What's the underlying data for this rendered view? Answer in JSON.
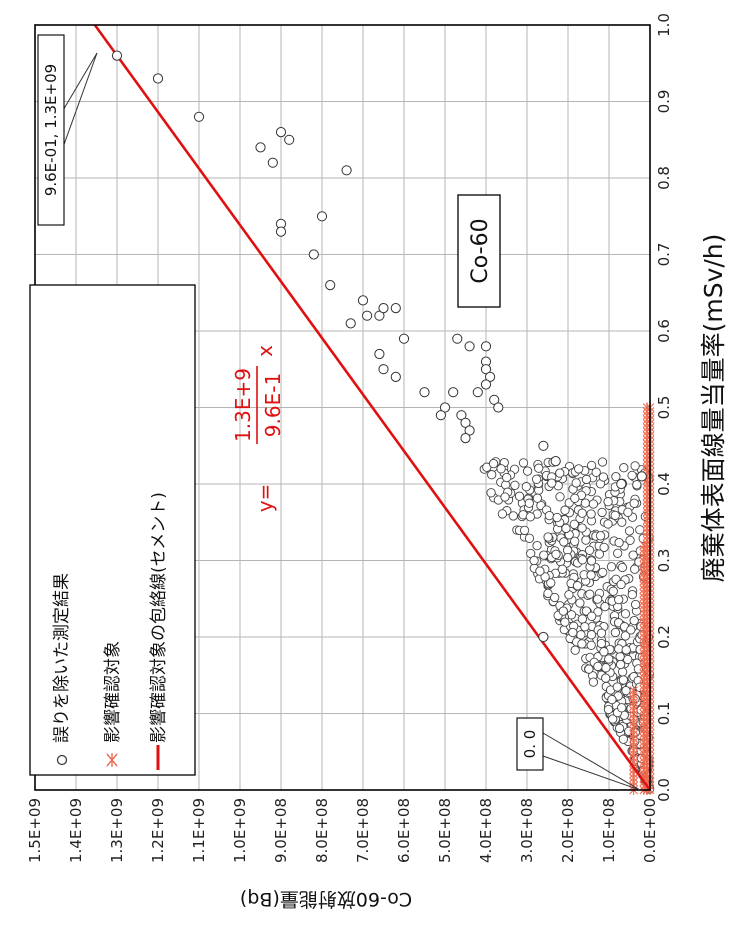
{
  "chart_data": {
    "type": "scatter",
    "xlabel": "廃棄体表面線量当量率(mSv/h)",
    "ylabel": "Co-60放射能量(Bq)",
    "xlim": [
      0.0,
      1.0
    ],
    "ylim": [
      0.0,
      1500000000
    ],
    "x_ticks": [
      "0.0",
      "0.1",
      "0.2",
      "0.3",
      "0.4",
      "0.5",
      "0.6",
      "0.7",
      "0.8",
      "0.9",
      "1.0"
    ],
    "y_ticks": [
      "0.0E+00",
      "1.0E+08",
      "2.0E+08",
      "3.0E+08",
      "4.0E+08",
      "5.0E+08",
      "6.0E+08",
      "7.0E+08",
      "8.0E+08",
      "9.0E+08",
      "1.0E+09",
      "1.1E+09",
      "1.2E+09",
      "1.3E+09",
      "1.4E+09",
      "1.5E+09"
    ],
    "grid": true,
    "legend": {
      "placement": "top-left",
      "entries": [
        "誤りを除いた測定結果",
        "影響確認対象",
        "影響確認対象の包絡線(セメント)"
      ]
    },
    "label_box": "Co-60",
    "annotations": {
      "point_max": "9.6E-01, 1.3E+09",
      "origin": "0. 0"
    },
    "equation": {
      "prefix": "y=",
      "numerator": "1.3E+9",
      "denominator": "9.6E-1",
      "suffix": "x"
    },
    "envelope_line": {
      "x": [
        0.0,
        1.0
      ],
      "y": [
        0,
        1354000000
      ],
      "color": "#e01010"
    },
    "series": [
      {
        "name": "誤りを除いた測定結果",
        "marker": "circle",
        "points": [
          [
            0.96,
            1300000000
          ],
          [
            0.93,
            1200000000
          ],
          [
            0.88,
            1100000000
          ],
          [
            0.86,
            900000000
          ],
          [
            0.84,
            950000000
          ],
          [
            0.85,
            880000000
          ],
          [
            0.82,
            920000000
          ],
          [
            0.81,
            740000000
          ],
          [
            0.74,
            900000000
          ],
          [
            0.75,
            800000000
          ],
          [
            0.73,
            900000000
          ],
          [
            0.7,
            820000000
          ],
          [
            0.66,
            780000000
          ],
          [
            0.64,
            700000000
          ],
          [
            0.62,
            660000000
          ],
          [
            0.61,
            730000000
          ],
          [
            0.62,
            690000000
          ],
          [
            0.63,
            650000000
          ],
          [
            0.63,
            620000000
          ],
          [
            0.59,
            600000000
          ],
          [
            0.57,
            660000000
          ],
          [
            0.55,
            650000000
          ],
          [
            0.54,
            620000000
          ],
          [
            0.52,
            550000000
          ],
          [
            0.52,
            480000000
          ],
          [
            0.5,
            500000000
          ],
          [
            0.49,
            510000000
          ],
          [
            0.49,
            460000000
          ],
          [
            0.48,
            450000000
          ],
          [
            0.47,
            440000000
          ],
          [
            0.46,
            450000000
          ],
          [
            0.59,
            470000000
          ],
          [
            0.58,
            440000000
          ],
          [
            0.58,
            400000000
          ],
          [
            0.56,
            400000000
          ],
          [
            0.55,
            400000000
          ],
          [
            0.54,
            390000000
          ],
          [
            0.53,
            400000000
          ],
          [
            0.52,
            420000000
          ],
          [
            0.51,
            380000000
          ],
          [
            0.5,
            370000000
          ],
          [
            0.45,
            260000000
          ],
          [
            0.43,
            230000000
          ],
          [
            0.41,
            20000000
          ],
          [
            0.4,
            70000000
          ],
          [
            0.2,
            260000000
          ]
        ],
        "dense_cluster": {
          "x_range": [
            0.0,
            0.43
          ],
          "y_range": [
            0,
            420000000
          ],
          "upper_bound_slope": 1000000000
        }
      },
      {
        "name": "影響確認対象",
        "marker": "asterisk",
        "color": "#ef6a50",
        "rows": [
          {
            "x_range": [
              0.0,
              0.5
            ],
            "y": 0
          },
          {
            "x_range": [
              0.0,
              0.5
            ],
            "y": 7000000
          },
          {
            "x_range": [
              0.0,
              0.32
            ],
            "y": 15000000
          },
          {
            "x_range": [
              0.0,
              0.13
            ],
            "y": 40000000
          }
        ]
      }
    ]
  }
}
